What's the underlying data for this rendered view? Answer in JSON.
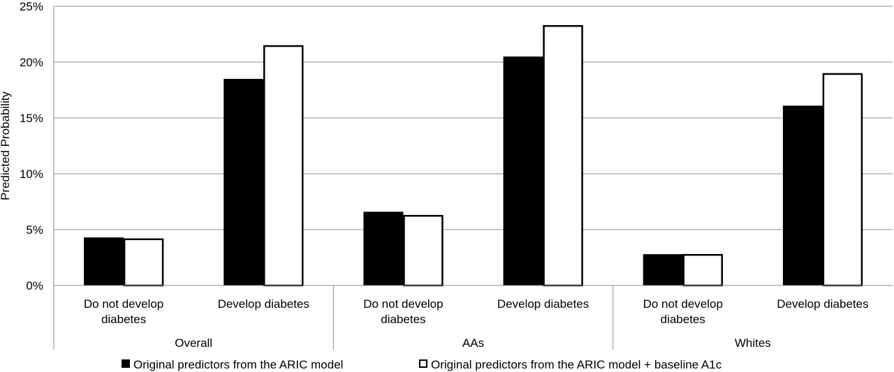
{
  "chart_data": {
    "type": "bar",
    "ylabel": "Predicted Probability",
    "ylim": [
      0,
      25
    ],
    "y_ticks": [
      "0%",
      "5%",
      "10%",
      "15%",
      "20%",
      "25%"
    ],
    "grid": true,
    "legend_position": "bottom",
    "groups": [
      {
        "label": "Overall",
        "categories": [
          "Do not develop diabetes",
          "Develop diabetes"
        ]
      },
      {
        "label": "AAs",
        "categories": [
          "Do not develop diabetes",
          "Develop diabetes"
        ]
      },
      {
        "label": "Whites",
        "categories": [
          "Do not develop diabetes",
          "Develop diabetes"
        ]
      }
    ],
    "category_label_lines": [
      [
        "Do not develop",
        "diabetes"
      ],
      [
        "Develop diabetes"
      ],
      [
        "Do not develop",
        "diabetes"
      ],
      [
        "Develop diabetes"
      ],
      [
        "Do not develop",
        "diabetes"
      ],
      [
        "Develop diabetes"
      ]
    ],
    "series": [
      {
        "name": "Original predictors from the ARIC model",
        "color": "#000000",
        "fill": "solid",
        "values": [
          4.3,
          18.5,
          6.6,
          20.5,
          2.8,
          16.1
        ]
      },
      {
        "name": "Original predictors from the ARIC model + baseline A1c",
        "color": "#ffffff",
        "fill": "hollow",
        "values": [
          4.2,
          21.5,
          6.3,
          23.3,
          2.8,
          19.0
        ]
      }
    ]
  }
}
